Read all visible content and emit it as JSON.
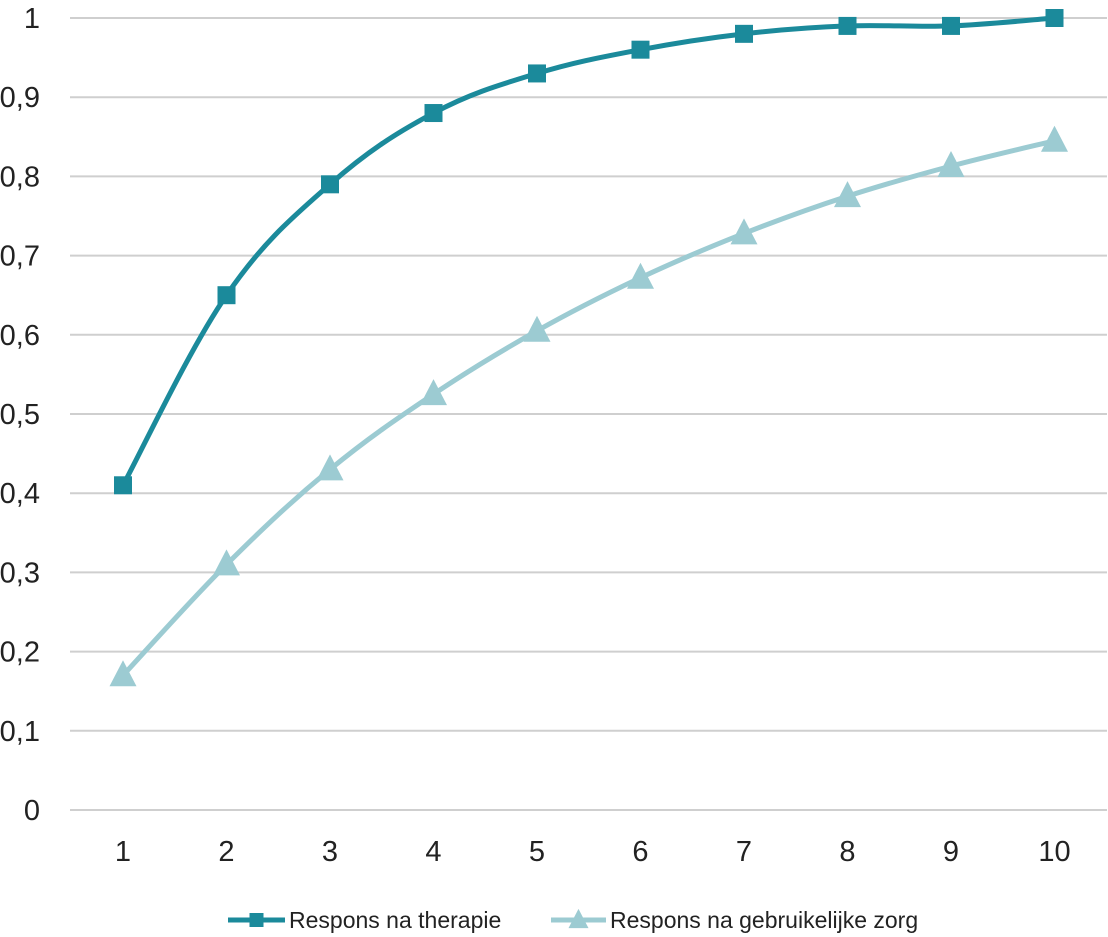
{
  "chart_data": {
    "type": "line",
    "title": "",
    "xlabel": "",
    "ylabel": "",
    "x": [
      1,
      2,
      3,
      4,
      5,
      6,
      7,
      8,
      9,
      10
    ],
    "x_tick_labels": [
      "1",
      "2",
      "3",
      "4",
      "5",
      "6",
      "7",
      "8",
      "9",
      "10"
    ],
    "ylim": [
      0,
      1
    ],
    "y_ticks": [
      0,
      0.1,
      0.2,
      0.3,
      0.4,
      0.5,
      0.6,
      0.7,
      0.8,
      0.9,
      1
    ],
    "y_tick_labels": [
      "0",
      "0,1",
      "0,2",
      "0,3",
      "0,4",
      "0,5",
      "0,6",
      "0,7",
      "0,8",
      "0,9",
      "1"
    ],
    "grid": "horizontal",
    "legend_position": "bottom",
    "series": [
      {
        "name": "Respons na therapie",
        "marker": "square",
        "color": "#1b8a9b",
        "values": [
          0.41,
          0.65,
          0.79,
          0.88,
          0.93,
          0.96,
          0.98,
          0.99,
          0.99,
          1.0
        ]
      },
      {
        "name": "Respons na gebruikelijke zorg",
        "marker": "triangle",
        "color": "#9ccbd2",
        "values": [
          0.17,
          0.31,
          0.43,
          0.525,
          0.605,
          0.672,
          0.728,
          0.775,
          0.813,
          0.845
        ]
      }
    ]
  }
}
